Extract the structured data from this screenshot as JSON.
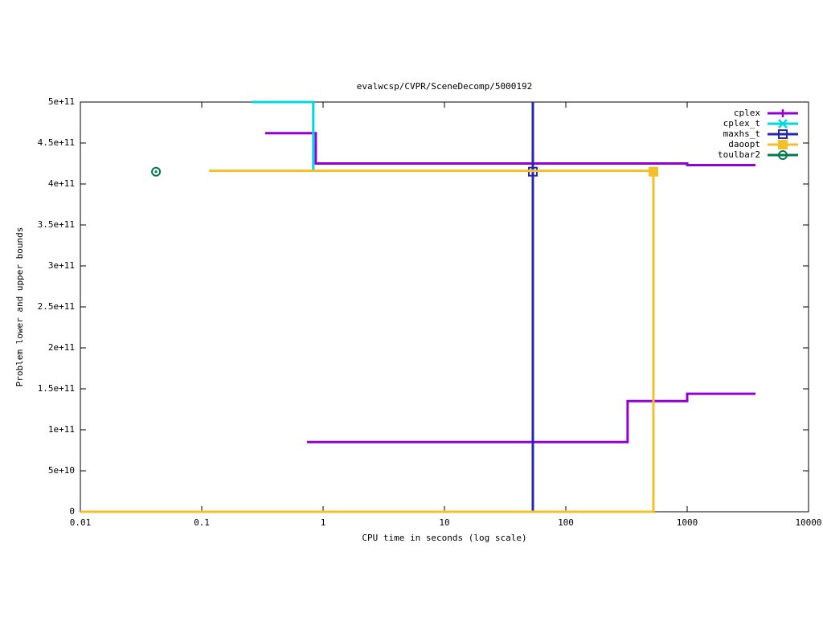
{
  "chart_data": {
    "type": "line",
    "title": "evalwcsp/CVPR/SceneDecomp/5000192",
    "x_label": "CPU time in seconds (log scale)",
    "y_label": "Problem lower and upper bounds",
    "x_log": true,
    "xlim": [
      0.01,
      10000
    ],
    "xticks": [
      0.01,
      0.1,
      1,
      10,
      100,
      1000,
      10000
    ],
    "ylim": [
      0,
      500000000000
    ],
    "yticks": [
      0,
      {
        "value": 50000000000,
        "label": "5e+10"
      },
      {
        "value": 100000000000,
        "label": "1e+11"
      },
      {
        "value": 150000000000,
        "label": "1.5e+11"
      },
      {
        "value": 200000000000,
        "label": "2e+11"
      },
      {
        "value": 250000000000,
        "label": "2.5e+11"
      },
      {
        "value": 300000000000,
        "label": "3e+11"
      },
      {
        "value": 350000000000,
        "label": "3.5e+11"
      },
      {
        "value": 400000000000,
        "label": "4e+11"
      },
      {
        "value": 450000000000,
        "label": "4.5e+11"
      },
      {
        "value": 500000000000,
        "label": "5e+11"
      }
    ],
    "legend": "top right",
    "series": [
      {
        "name": "cplex",
        "color": "#9400d3",
        "marker": "plus",
        "x": [
          0.333,
          0.87,
          0.87,
          1000,
          1000,
          3656,
          null,
          0.738,
          323,
          323,
          1000,
          1000,
          3656
        ],
        "values": [
          462000000000,
          462000000000,
          425000000000,
          425000000000,
          423000000000,
          423000000000,
          null,
          85000000000,
          85000000000,
          135000000000,
          135000000000,
          144000000000,
          144000000000
        ],
        "markers": {
          "x": [],
          "values": []
        }
      },
      {
        "name": "cplex_t",
        "color": "#00d8e0",
        "marker": "cross",
        "x": [
          0.257,
          0.83,
          0.83
        ],
        "values": [
          500000000000,
          500000000000,
          416000000000
        ],
        "markers": {
          "x": [],
          "values": []
        }
      },
      {
        "name": "maxhs_t",
        "color": "#2626b3",
        "marker": "square",
        "x": [
          53.5,
          53.5
        ],
        "values": [
          0,
          500000000000
        ],
        "markers": {
          "x": [
            53.5
          ],
          "values": [
            415000000000
          ]
        }
      },
      {
        "name": "daoopt",
        "color": "#f5bf2a",
        "marker": "filled-square",
        "x": [
          0.115,
          527,
          527,
          0.01
        ],
        "values": [
          416000000000,
          416000000000,
          0,
          0
        ],
        "markers": {
          "x": [
            527
          ],
          "values": [
            415000000000
          ]
        }
      },
      {
        "name": "toulbar2",
        "color": "#007a4d",
        "marker": "circle",
        "x": [],
        "values": [],
        "markers": {
          "x": [
            0.042
          ],
          "values": [
            415000000000
          ]
        }
      }
    ]
  }
}
